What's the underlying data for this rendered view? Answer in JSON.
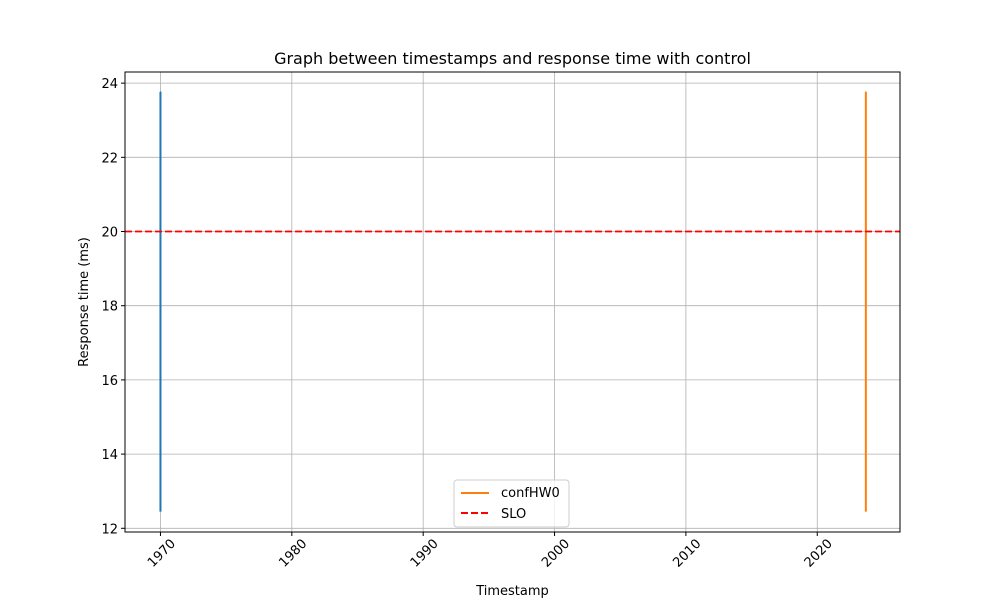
{
  "chart_data": {
    "type": "line",
    "title": "Graph between timestamps and response time with control",
    "xlabel": "Timestamp",
    "ylabel": "Response time (ms)",
    "xlim": [
      1967.3,
      2026.3
    ],
    "ylim": [
      11.9,
      24.3
    ],
    "x_ticks": [
      1970,
      1980,
      1990,
      2000,
      2010,
      2020
    ],
    "y_ticks": [
      12,
      14,
      16,
      18,
      20,
      22,
      24
    ],
    "grid": true,
    "legend_position": "lower center",
    "series": [
      {
        "name": "",
        "color": "#1f77b4",
        "x": [
          1970.0,
          1970.0,
          1970.0,
          1970.0,
          1970.0,
          1970.0
        ],
        "y": [
          12.45,
          23.75,
          13.2,
          22.9,
          15.6,
          21.4
        ]
      },
      {
        "name": "confHW0",
        "color": "#ff7f0e",
        "x": [
          2023.7,
          2023.7,
          2023.7,
          2023.7,
          2023.7,
          2023.7
        ],
        "y": [
          12.45,
          23.75,
          13.5,
          22.8,
          15.2,
          21.0
        ]
      }
    ],
    "hlines": [
      {
        "name": "SLO",
        "y": 20,
        "color": "#ff0000",
        "style": "dashed"
      }
    ]
  }
}
